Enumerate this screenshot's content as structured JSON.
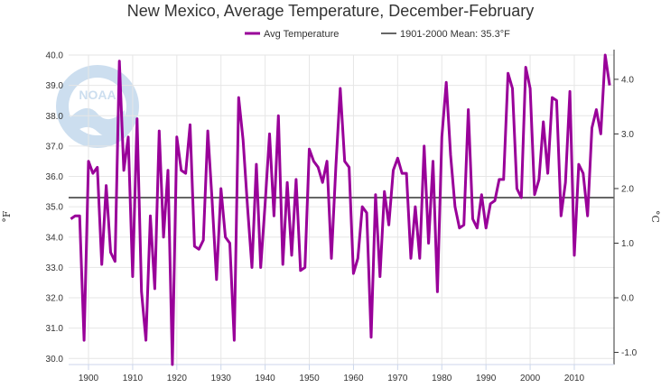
{
  "chart_data": {
    "type": "line",
    "title": "New Mexico, Average Temperature, December-February",
    "y_unit_left": "°F",
    "y_unit_right": "°C",
    "ylim": [
      29.8,
      40.0
    ],
    "xlim": [
      1895.5,
      2019
    ],
    "y_ticks": [
      30.0,
      31.0,
      32.0,
      33.0,
      34.0,
      35.0,
      36.0,
      37.0,
      38.0,
      39.0,
      40.0
    ],
    "y_ticks_right": [
      -1.0,
      0.0,
      1.0,
      2.0,
      3.0,
      4.0
    ],
    "x_ticks": [
      1900,
      1910,
      1920,
      1930,
      1940,
      1950,
      1960,
      1970,
      1980,
      1990,
      2000,
      2010
    ],
    "series": [
      {
        "name": "Avg Temperature",
        "color": "#990099",
        "x": [
          1896,
          1897,
          1898,
          1899,
          1900,
          1901,
          1902,
          1903,
          1904,
          1905,
          1906,
          1907,
          1908,
          1909,
          1910,
          1911,
          1912,
          1913,
          1914,
          1915,
          1916,
          1917,
          1918,
          1919,
          1920,
          1921,
          1922,
          1923,
          1924,
          1925,
          1926,
          1927,
          1928,
          1929,
          1930,
          1931,
          1932,
          1933,
          1934,
          1935,
          1936,
          1937,
          1938,
          1939,
          1940,
          1941,
          1942,
          1943,
          1944,
          1945,
          1946,
          1947,
          1948,
          1949,
          1950,
          1951,
          1952,
          1953,
          1954,
          1955,
          1956,
          1957,
          1958,
          1959,
          1960,
          1961,
          1962,
          1963,
          1964,
          1965,
          1966,
          1967,
          1968,
          1969,
          1970,
          1971,
          1972,
          1973,
          1974,
          1975,
          1976,
          1977,
          1978,
          1979,
          1980,
          1981,
          1982,
          1983,
          1984,
          1985,
          1986,
          1987,
          1988,
          1989,
          1990,
          1991,
          1992,
          1993,
          1994,
          1995,
          1996,
          1997,
          1998,
          1999,
          2000,
          2001,
          2002,
          2003,
          2004,
          2005,
          2006,
          2007,
          2008,
          2009,
          2010,
          2011,
          2012,
          2013,
          2014,
          2015,
          2016,
          2017,
          2018
        ],
        "y": [
          34.6,
          34.7,
          34.7,
          30.6,
          36.5,
          36.1,
          36.3,
          33.1,
          35.7,
          33.5,
          33.2,
          39.8,
          36.2,
          37.3,
          32.7,
          37.9,
          32.2,
          30.6,
          34.7,
          32.3,
          37.5,
          34.0,
          36.2,
          29.8,
          37.3,
          36.2,
          36.1,
          37.7,
          33.7,
          33.6,
          33.9,
          37.5,
          35.2,
          32.6,
          35.6,
          34.0,
          33.8,
          30.6,
          38.6,
          37.2,
          35.0,
          33.0,
          36.4,
          33.0,
          35.1,
          37.4,
          34.7,
          38.0,
          33.1,
          35.8,
          33.4,
          35.9,
          32.9,
          33.0,
          36.9,
          36.5,
          36.3,
          35.8,
          36.5,
          33.3,
          36.3,
          38.9,
          36.5,
          36.3,
          32.8,
          33.3,
          35.0,
          34.8,
          30.7,
          35.4,
          32.7,
          35.5,
          34.4,
          36.2,
          36.6,
          36.1,
          36.1,
          33.3,
          35.0,
          33.3,
          37.0,
          33.8,
          36.5,
          32.2,
          37.3,
          39.1,
          36.7,
          35.0,
          34.3,
          34.4,
          38.2,
          34.6,
          34.3,
          35.4,
          34.3,
          35.1,
          35.2,
          35.9,
          35.9,
          39.4,
          38.9,
          35.6,
          35.3,
          39.6,
          38.9,
          35.4,
          35.9,
          37.8,
          36.1,
          38.6,
          38.5,
          34.7,
          35.8,
          38.8,
          33.4,
          36.4,
          36.1,
          34.7,
          37.6,
          38.2,
          37.4,
          40.0,
          39.0
        ]
      },
      {
        "name": "1901-2000 Mean: 35.3°F",
        "color": "#666666",
        "x": [
          1896,
          2018
        ],
        "y": [
          35.3,
          35.3
        ]
      }
    ],
    "grid": true,
    "legend": "top-center"
  },
  "watermark": {
    "logo_text": "NOAA",
    "ring_text": "NATIONAL OCEANIC AND ATMOSPHERIC ADMINISTRATION"
  }
}
